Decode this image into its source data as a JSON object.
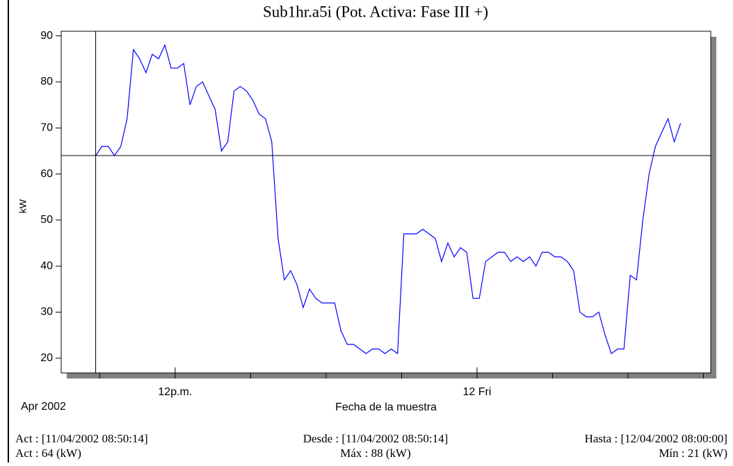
{
  "chart_data": {
    "type": "line",
    "title": "Sub1hr.a5i (Pot. Activa: Fase III +)",
    "y_label": "kW",
    "x_label": "Fecha de la muestra",
    "x_period": "Apr 2002",
    "x": [
      8.84,
      9.09,
      9.34,
      9.59,
      9.84,
      10.09,
      10.34,
      10.59,
      10.84,
      11.09,
      11.34,
      11.59,
      11.84,
      12.09,
      12.34,
      12.59,
      12.84,
      13.09,
      13.34,
      13.59,
      13.84,
      14.09,
      14.34,
      14.59,
      14.84,
      15.09,
      15.34,
      15.59,
      15.84,
      16.09,
      16.34,
      16.59,
      16.84,
      17.09,
      17.34,
      17.59,
      17.84,
      18.09,
      18.34,
      18.59,
      18.84,
      19.09,
      19.34,
      19.59,
      19.84,
      20.09,
      20.34,
      20.59,
      20.84,
      21.09,
      21.34,
      21.59,
      21.84,
      22.09,
      22.34,
      22.59,
      22.84,
      23.09,
      23.34,
      23.59,
      23.84,
      24.09,
      24.34,
      24.59,
      24.84,
      25.09,
      25.34,
      25.59,
      25.84,
      26.09,
      26.34,
      26.59,
      26.84,
      27.09,
      27.34,
      27.59,
      27.84,
      28.09,
      28.34,
      28.59,
      28.84,
      29.09,
      29.34,
      29.59,
      29.84,
      30.09,
      30.34,
      30.59,
      30.84,
      31.09,
      31.34,
      31.59,
      31.84,
      32.09
    ],
    "series": [
      {
        "name": "Pot. Activa: Fase III +",
        "color": "#0000ff",
        "values": [
          64,
          66,
          66,
          64,
          66,
          72,
          87,
          85,
          82,
          86,
          85,
          88,
          83,
          83,
          84,
          75,
          79,
          80,
          77,
          74,
          65,
          67,
          78,
          79,
          78,
          76,
          73,
          72,
          67,
          46,
          37,
          39,
          36,
          31,
          35,
          33,
          32,
          32,
          32,
          26,
          23,
          23,
          22,
          21,
          22,
          22,
          21,
          22,
          21,
          47,
          47,
          47,
          48,
          47,
          46,
          41,
          45,
          42,
          44,
          43,
          33,
          33,
          41,
          42,
          43,
          43,
          41,
          42,
          41,
          42,
          40,
          43,
          43,
          42,
          42,
          41,
          39,
          30,
          29,
          29,
          30,
          25,
          21,
          22,
          22,
          38,
          37,
          50,
          60,
          66,
          69,
          72,
          67,
          71
        ]
      }
    ],
    "xlim": [
      7.47,
      33.29
    ],
    "xticks": [
      {
        "value": 12,
        "label": "12p.m."
      },
      {
        "value": 24,
        "label": "12 Fri"
      }
    ],
    "xminor_ticks": [
      9,
      15,
      18,
      21,
      27,
      30,
      33
    ],
    "ylim": [
      16.8,
      91
    ],
    "yticks": [
      20,
      30,
      40,
      50,
      60,
      70,
      80,
      90
    ],
    "footer": {
      "row1": [
        "Act : [11/04/2002 08:50:14]",
        "Desde : [11/04/2002 08:50:14]",
        "Hasta : [12/04/2002 08:00:00]"
      ],
      "row2": [
        "Act : 64 (kW)",
        "Máx : 88 (kW)",
        "Mín : 21 (kW)"
      ]
    }
  }
}
